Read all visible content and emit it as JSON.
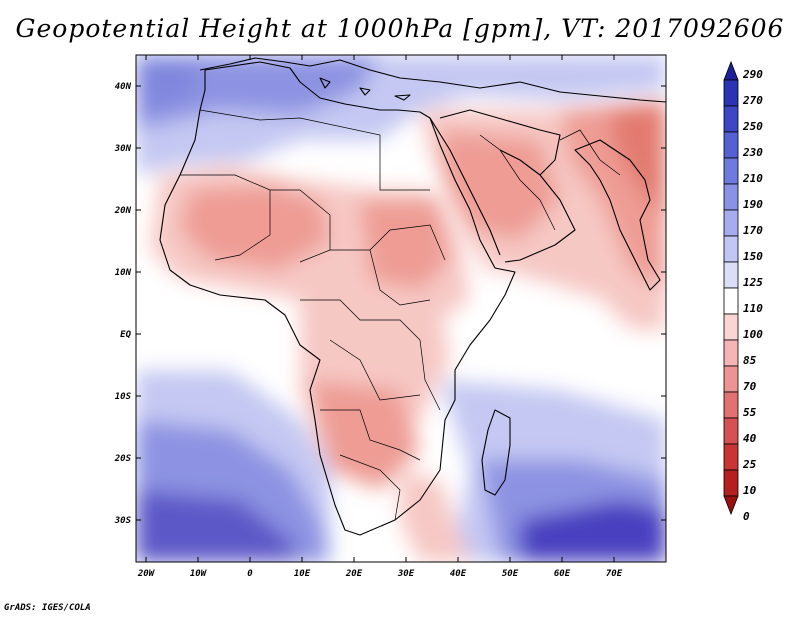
{
  "title": "Geopotential Height at 1000hPa [gpm], VT: 2017092606",
  "credit": "GrADS: IGES/COLA",
  "lat_labels": [
    "40N",
    "30N",
    "20N",
    "10N",
    "EQ",
    "10S",
    "20S",
    "30S"
  ],
  "lon_labels": [
    "20W",
    "10W",
    "0",
    "10E",
    "20E",
    "30E",
    "40E",
    "50E",
    "60E",
    "70E"
  ],
  "colorbar": {
    "levels": [
      "290",
      "270",
      "250",
      "230",
      "210",
      "190",
      "170",
      "150",
      "125",
      "110",
      "100",
      "85",
      "70",
      "55",
      "40",
      "25",
      "10",
      "0"
    ],
    "colors": [
      "#1c1e9a",
      "#2a33b4",
      "#3d47c6",
      "#5561d2",
      "#6f7ade",
      "#8a92e6",
      "#a6acee",
      "#c2c6f4",
      "#dcdef8",
      "#ffffff",
      "#fbd4d4",
      "#f5b5b5",
      "#ec9494",
      "#e27272",
      "#d65252",
      "#c83535",
      "#b41f1f",
      "#9a0f0f"
    ]
  },
  "map": {
    "field_colors": {
      "deep_blue": "#4a3fbf",
      "mid_blue": "#7f86dd",
      "light_blue": "#c4c8f2",
      "pale_blue": "#dfe1f8",
      "white": "#ffffff",
      "pale_red": "#f6c8c4",
      "light_red": "#ee9c94",
      "mid_red": "#e27a70",
      "deep_red": "#d86058"
    }
  }
}
